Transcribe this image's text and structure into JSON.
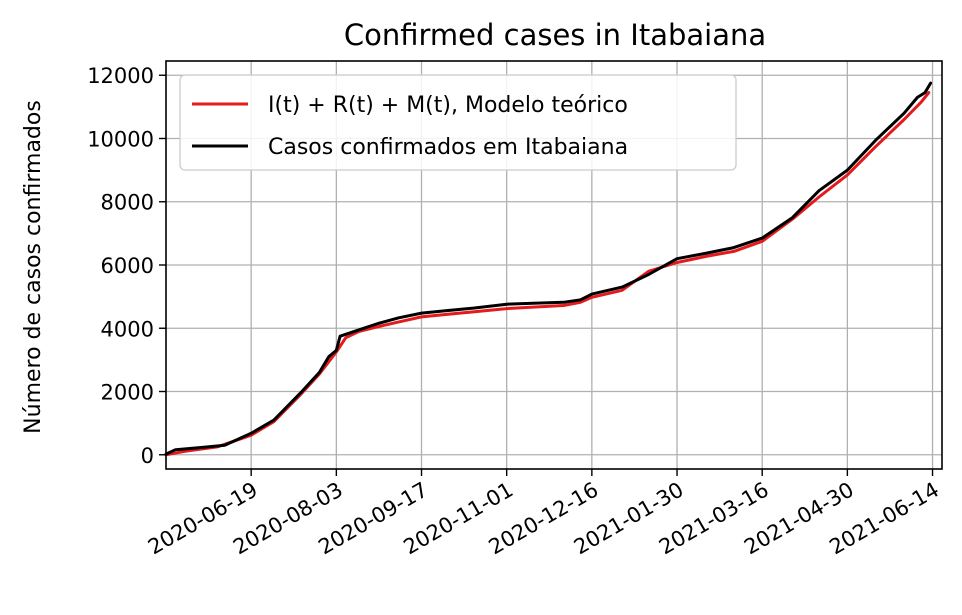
{
  "chart_data": {
    "type": "line",
    "title": "Confirmed cases in Itabaiana",
    "xlabel": "",
    "ylabel": "Número de casos confirmados",
    "x_ticks": [
      "2020-06-19",
      "2020-08-03",
      "2020-09-17",
      "2020-11-01",
      "2020-12-16",
      "2021-01-30",
      "2021-03-16",
      "2021-04-30",
      "2021-06-14"
    ],
    "x_range": [
      "2020-05-05",
      "2021-06-19"
    ],
    "y_ticks": [
      0,
      2000,
      4000,
      6000,
      8000,
      10000,
      12000
    ],
    "ylim": [
      -450,
      12450
    ],
    "grid": true,
    "legend_position": "upper-left",
    "series": [
      {
        "name": "I(t) + R(t) + M(t), Modelo teórico",
        "color": "#e41a1c",
        "points": [
          [
            "2020-05-05",
            0
          ],
          [
            "2020-05-15",
            110
          ],
          [
            "2020-06-01",
            250
          ],
          [
            "2020-06-19",
            620
          ],
          [
            "2020-07-01",
            1050
          ],
          [
            "2020-07-15",
            1900
          ],
          [
            "2020-07-25",
            2550
          ],
          [
            "2020-08-03",
            3250
          ],
          [
            "2020-08-08",
            3700
          ],
          [
            "2020-08-15",
            3900
          ],
          [
            "2020-08-25",
            4050
          ],
          [
            "2020-09-05",
            4200
          ],
          [
            "2020-09-17",
            4360
          ],
          [
            "2020-10-01",
            4440
          ],
          [
            "2020-10-15",
            4520
          ],
          [
            "2020-11-01",
            4620
          ],
          [
            "2020-11-15",
            4670
          ],
          [
            "2020-12-01",
            4720
          ],
          [
            "2020-12-10",
            4820
          ],
          [
            "2020-12-16",
            4980
          ],
          [
            "2021-01-01",
            5200
          ],
          [
            "2021-01-15",
            5800
          ],
          [
            "2021-01-30",
            6080
          ],
          [
            "2021-02-15",
            6280
          ],
          [
            "2021-03-01",
            6430
          ],
          [
            "2021-03-16",
            6750
          ],
          [
            "2021-04-01",
            7450
          ],
          [
            "2021-04-15",
            8150
          ],
          [
            "2021-04-30",
            8850
          ],
          [
            "2021-05-15",
            9750
          ],
          [
            "2021-05-30",
            10600
          ],
          [
            "2021-06-08",
            11150
          ],
          [
            "2021-06-12",
            11450
          ]
        ]
      },
      {
        "name": "Casos confirmados em Itabaiana",
        "color": "#000000",
        "points": [
          [
            "2020-05-05",
            20
          ],
          [
            "2020-05-10",
            160
          ],
          [
            "2020-05-25",
            240
          ],
          [
            "2020-06-05",
            300
          ],
          [
            "2020-06-19",
            680
          ],
          [
            "2020-07-01",
            1100
          ],
          [
            "2020-07-15",
            1950
          ],
          [
            "2020-07-25",
            2600
          ],
          [
            "2020-07-30",
            3100
          ],
          [
            "2020-08-03",
            3300
          ],
          [
            "2020-08-05",
            3750
          ],
          [
            "2020-08-15",
            3950
          ],
          [
            "2020-08-25",
            4150
          ],
          [
            "2020-09-05",
            4330
          ],
          [
            "2020-09-17",
            4480
          ],
          [
            "2020-10-01",
            4560
          ],
          [
            "2020-10-15",
            4640
          ],
          [
            "2020-11-01",
            4760
          ],
          [
            "2020-11-15",
            4790
          ],
          [
            "2020-12-01",
            4820
          ],
          [
            "2020-12-10",
            4900
          ],
          [
            "2020-12-16",
            5080
          ],
          [
            "2021-01-01",
            5300
          ],
          [
            "2021-01-15",
            5700
          ],
          [
            "2021-01-30",
            6200
          ],
          [
            "2021-02-15",
            6380
          ],
          [
            "2021-03-01",
            6550
          ],
          [
            "2021-03-16",
            6850
          ],
          [
            "2021-04-01",
            7500
          ],
          [
            "2021-04-15",
            8350
          ],
          [
            "2021-04-30",
            9000
          ],
          [
            "2021-05-15",
            9950
          ],
          [
            "2021-05-30",
            10800
          ],
          [
            "2021-06-06",
            11300
          ],
          [
            "2021-06-10",
            11450
          ],
          [
            "2021-06-13",
            11750
          ]
        ]
      }
    ]
  }
}
